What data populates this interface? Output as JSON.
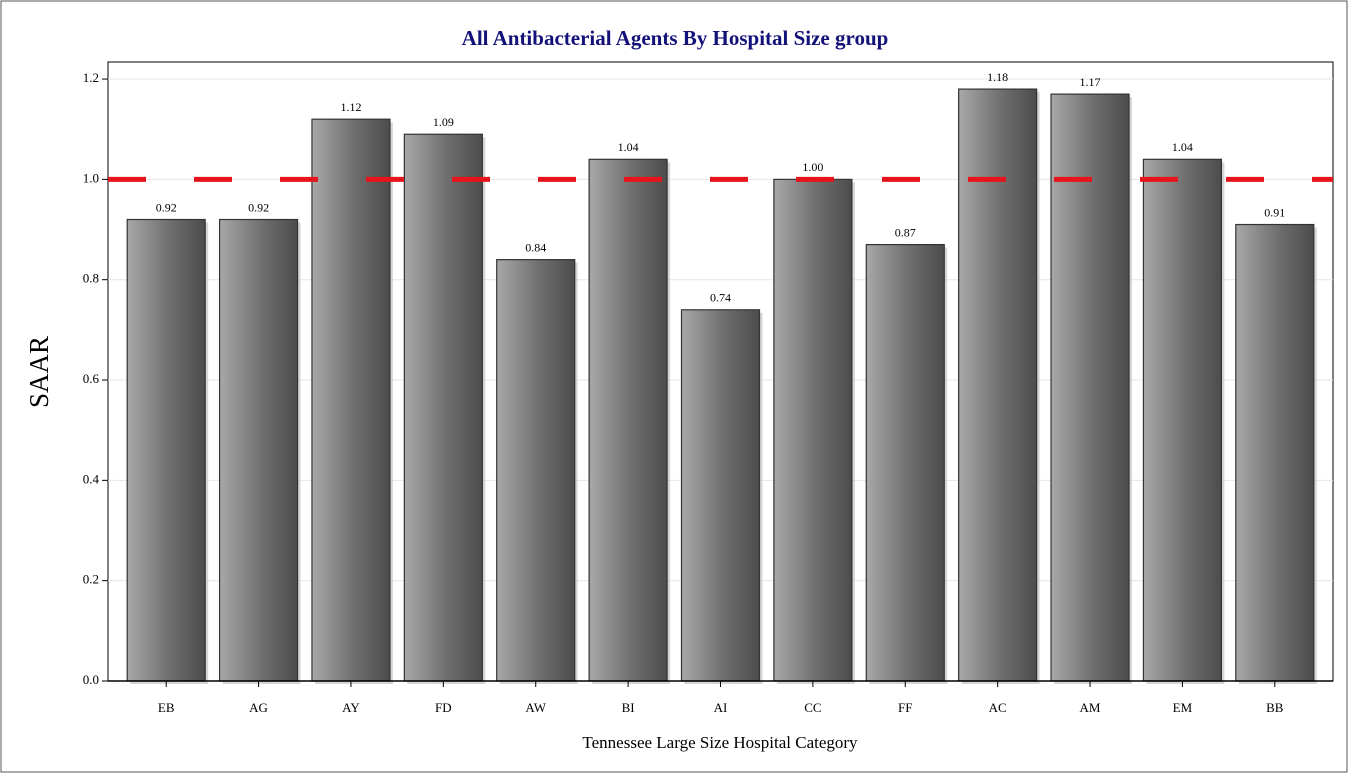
{
  "chart_data": {
    "type": "bar",
    "title": "All Antibacterial Agents By Hospital Size group",
    "x_label": "Tennessee Large Size Hospital Category",
    "y_label": "SAAR",
    "categories": [
      "EB",
      "AG",
      "AY",
      "FD",
      "AW",
      "BI",
      "AI",
      "CC",
      "FF",
      "AC",
      "AM",
      "EM",
      "BB"
    ],
    "values": [
      0.92,
      0.92,
      1.12,
      1.09,
      0.84,
      1.04,
      0.74,
      1.0,
      0.87,
      1.18,
      1.17,
      1.04,
      0.91
    ],
    "value_labels": [
      "0.92",
      "0.92",
      "1.12",
      "1.09",
      "0.84",
      "1.04",
      "0.74",
      "1.00",
      "0.87",
      "1.18",
      "1.17",
      "1.04",
      "0.91"
    ],
    "color": "#6e6e6e",
    "ylim": [
      0,
      1.234
    ],
    "yticks": [
      {
        "value": 0,
        "label": "0.0"
      },
      {
        "value": 0.2,
        "label": "0.2"
      },
      {
        "value": 0.4,
        "label": "0.4"
      },
      {
        "value": 0.6,
        "label": "0.6"
      },
      {
        "value": 0.8,
        "label": "0.8"
      },
      {
        "value": 1,
        "label": "1.0"
      },
      {
        "value": 1.2,
        "label": "1.2"
      }
    ],
    "grid": true,
    "reference_line": {
      "value": 1,
      "color": "#e8141b"
    }
  }
}
